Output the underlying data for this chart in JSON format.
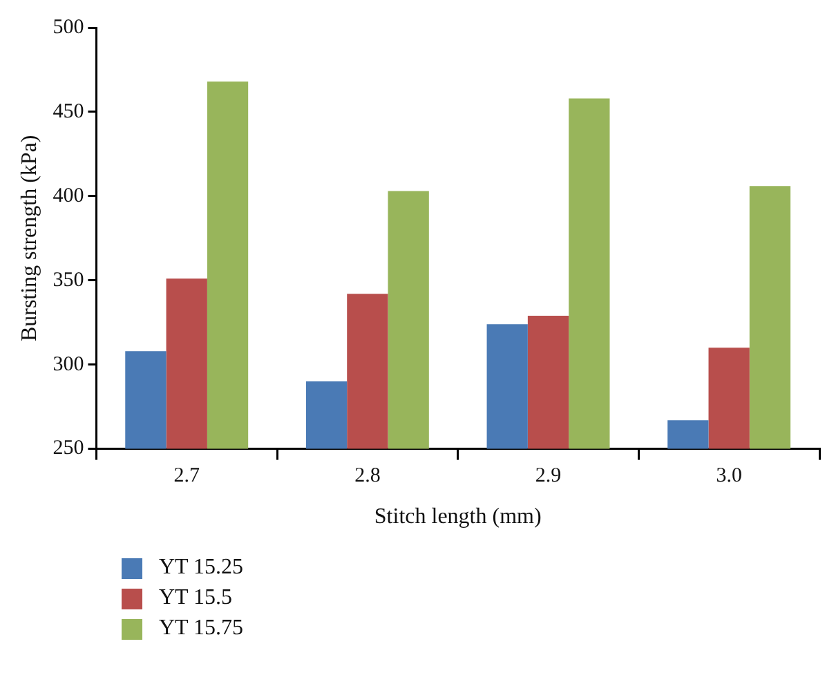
{
  "chart_data": {
    "type": "bar",
    "xlabel": "Stitch length (mm)",
    "ylabel": "Bursting strength (kPa)",
    "categories": [
      "2.7",
      "2.8",
      "2.9",
      "3.0"
    ],
    "series": [
      {
        "name": "YT 15.25",
        "color": "#4a7ab5",
        "values": [
          308,
          290,
          324,
          267
        ]
      },
      {
        "name": "YT 15.5",
        "color": "#b84e4c",
        "values": [
          351,
          342,
          329,
          310
        ]
      },
      {
        "name": "YT 15.75",
        "color": "#98b55b",
        "values": [
          468,
          403,
          458,
          406
        ]
      }
    ],
    "ylim": [
      250,
      500
    ],
    "yticks": [
      250,
      300,
      350,
      400,
      450,
      500
    ],
    "grid": false,
    "legend": "bottom left"
  }
}
